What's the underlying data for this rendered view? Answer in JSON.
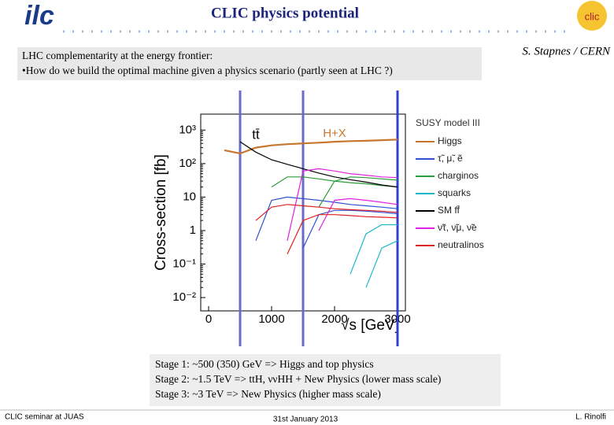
{
  "header": {
    "title": "CLIC physics potential",
    "author": "S. Stapnes / CERN",
    "logo_left": "ilc",
    "logo_right": "clic"
  },
  "intro": {
    "lines": [
      "LHC complementarity at the energy frontier:",
      "•How do we build the optimal machine given a physics scenario (partly seen at LHC ?)"
    ]
  },
  "chart_data": {
    "type": "line",
    "y_label": "Cross-section [fb]",
    "x_label": "√s [GeV]",
    "legend_title": "SUSY model III",
    "log_y": true,
    "xlim": [
      -125,
      3125
    ],
    "ylim": [
      0.004,
      3000
    ],
    "xticks": [
      0,
      1000,
      2000,
      3000
    ],
    "yticks": [
      {
        "value": 1000,
        "label": "10³"
      },
      {
        "value": 100,
        "label": "10²"
      },
      10,
      1,
      {
        "value": 0.1,
        "label": "10⁻¹"
      },
      {
        "value": 0.01,
        "label": "10⁻²"
      }
    ],
    "annotations": [
      "tt̄",
      "H+X"
    ],
    "stage_lines": [
      500,
      1500,
      3000
    ],
    "x": [
      0,
      250,
      500,
      750,
      1000,
      1250,
      1500,
      1750,
      2000,
      2250,
      2500,
      2750,
      3000
    ],
    "series": [
      {
        "name": "Higgs",
        "color": "#c8762e",
        "curves": [
          [
            null,
            250,
            200,
            300,
            350,
            380,
            400,
            420,
            450,
            470,
            480,
            500,
            520
          ]
        ]
      },
      {
        "name": "τ̃, μ̃, ẽ",
        "color": "#3050d0",
        "curves": [
          [
            null,
            null,
            null,
            0.5,
            8,
            10,
            9,
            8,
            7,
            6,
            5.5,
            5,
            4.5
          ],
          [
            null,
            null,
            null,
            null,
            null,
            null,
            0.3,
            3,
            4,
            4,
            3.8,
            3.5,
            3.2
          ]
        ]
      },
      {
        "name": "charginos",
        "color": "#2a9a3a",
        "curves": [
          [
            null,
            null,
            null,
            null,
            20,
            40,
            40,
            35,
            30,
            27,
            25,
            22,
            20
          ],
          [
            null,
            null,
            null,
            null,
            null,
            null,
            null,
            5,
            30,
            40,
            38,
            35,
            32
          ]
        ]
      },
      {
        "name": "squarks",
        "color": "#20b8c8",
        "curves": [
          [
            null,
            null,
            null,
            null,
            null,
            null,
            null,
            null,
            null,
            0.05,
            0.8,
            1.5,
            1.5
          ],
          [
            null,
            null,
            null,
            null,
            null,
            null,
            null,
            null,
            null,
            null,
            0.02,
            0.3,
            0.5
          ]
        ]
      },
      {
        "name": "SM ff̄",
        "color": "#000000",
        "curves": [
          [
            null,
            null,
            450,
            220,
            130,
            95,
            70,
            52,
            40,
            33,
            28,
            23,
            20
          ]
        ]
      },
      {
        "name": "ν̃τ, ν̃μ, ν̃e",
        "color": "#e020e0",
        "curves": [
          [
            null,
            null,
            null,
            null,
            null,
            0.5,
            60,
            70,
            60,
            50,
            45,
            40,
            38
          ],
          [
            null,
            null,
            null,
            null,
            null,
            null,
            null,
            1,
            8,
            9,
            8,
            7,
            6
          ]
        ]
      },
      {
        "name": "neutralinos",
        "color": "#e02020",
        "curves": [
          [
            null,
            null,
            null,
            2,
            5,
            6,
            5.5,
            5,
            4.5,
            4.2,
            4,
            3.8,
            3.5
          ],
          [
            null,
            null,
            null,
            null,
            null,
            0.2,
            2,
            3,
            3,
            2.8,
            2.6,
            2.5,
            2.4
          ]
        ]
      }
    ]
  },
  "stages": {
    "lines": [
      "Stage 1: ~500 (350) GeV => Higgs and top physics",
      "Stage 2: ~1.5 TeV => ttH, ννHH + New Physics (lower mass scale)",
      "Stage 3: ~3 TeV => New Physics (higher mass scale)"
    ]
  },
  "footer": {
    "left": "CLIC seminar at JUAS",
    "center": "31st January 2013",
    "right": "L. Rinolfi"
  }
}
